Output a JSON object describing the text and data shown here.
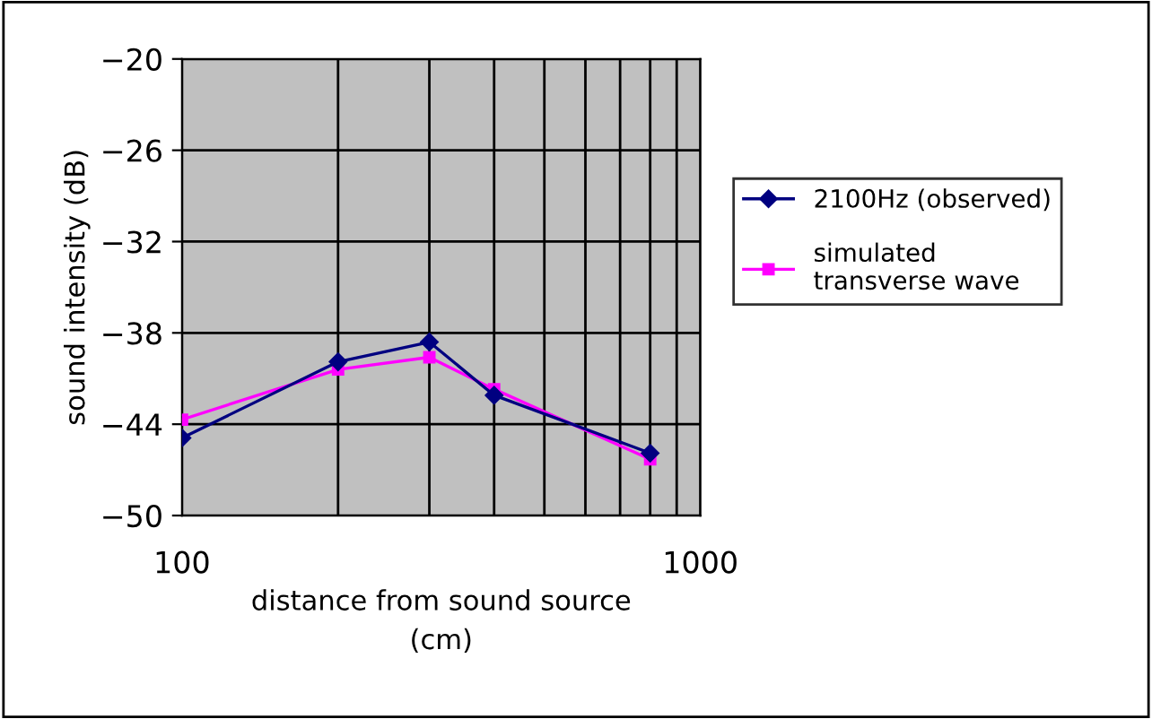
{
  "chart_data": {
    "type": "line",
    "xlabel": "distance from sound source\n(cm)",
    "ylabel": "sound intensity (dB)",
    "log": "x",
    "x": [
      100,
      200,
      300,
      400,
      800
    ],
    "series": [
      {
        "name": "2100Hz (observed)",
        "color": "#000080",
        "marker": "diamond",
        "values": [
          -44.9,
          -39.9,
          -38.6,
          -42.1,
          -45.9
        ]
      },
      {
        "name": "simulated\ntransverse wave",
        "color": "#ff00ff",
        "marker": "square",
        "values": [
          -43.7,
          -40.4,
          -39.6,
          -41.7,
          -46.3
        ]
      }
    ],
    "xlim": [
      100,
      1000
    ],
    "xticks": [
      100,
      {
        "value": 200,
        "label": null
      },
      {
        "value": 300,
        "label": null
      },
      {
        "value": 400,
        "label": null
      },
      {
        "value": 500,
        "label": null
      },
      {
        "value": 600,
        "label": null
      },
      {
        "value": 700,
        "label": null
      },
      {
        "value": 800,
        "label": null
      },
      {
        "value": 900,
        "label": null
      },
      1000
    ],
    "ylim": [
      -50,
      -20
    ],
    "yticks": [
      {
        "value": -50,
        "label": "−50"
      },
      {
        "value": -44,
        "label": "−44"
      },
      {
        "value": -38,
        "label": "−38"
      },
      {
        "value": -32,
        "label": "−32"
      },
      {
        "value": -26,
        "label": "−26"
      },
      {
        "value": -20,
        "label": "−20"
      }
    ],
    "grid": true,
    "legend": "right",
    "line_style": "solid"
  }
}
